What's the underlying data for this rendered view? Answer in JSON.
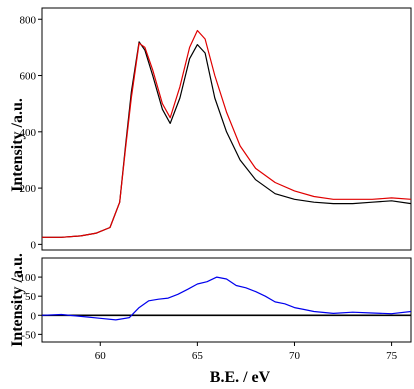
{
  "chart_data": [
    {
      "type": "line",
      "title": "",
      "xlabel": "B.E. / eV",
      "ylabel": "Intensity /a.u.",
      "xlim": [
        57,
        76
      ],
      "ylim": [
        -20,
        840
      ],
      "yticks": [
        0,
        200,
        400,
        600,
        800
      ],
      "grid": false,
      "series": [
        {
          "color": "#000000",
          "x": [
            57,
            58,
            59,
            59.8,
            60.5,
            61,
            61.3,
            61.6,
            62,
            62.3,
            62.7,
            63.2,
            63.6,
            64.1,
            64.6,
            65,
            65.4,
            65.9,
            66.5,
            67.2,
            68,
            69,
            70,
            71,
            72,
            73,
            74,
            75,
            76
          ],
          "y": [
            25,
            25,
            30,
            40,
            60,
            150,
            350,
            540,
            720,
            690,
            600,
            480,
            430,
            520,
            660,
            710,
            680,
            520,
            400,
            300,
            230,
            180,
            160,
            150,
            145,
            145,
            150,
            155,
            145
          ]
        },
        {
          "color": "#e00000",
          "x": [
            57,
            58,
            59,
            59.8,
            60.5,
            61,
            61.3,
            61.6,
            62,
            62.3,
            62.7,
            63.2,
            63.6,
            64.1,
            64.6,
            65,
            65.4,
            65.9,
            66.5,
            67.2,
            68,
            69,
            70,
            71,
            72,
            73,
            74,
            75,
            76
          ],
          "y": [
            25,
            25,
            30,
            40,
            60,
            150,
            340,
            520,
            715,
            700,
            620,
            500,
            450,
            560,
            700,
            760,
            730,
            600,
            470,
            350,
            270,
            220,
            190,
            170,
            160,
            160,
            160,
            165,
            160
          ]
        }
      ]
    },
    {
      "type": "line",
      "title": "",
      "xlabel": "B.E. / eV",
      "ylabel": "Intensity /a.u.",
      "xlim": [
        57,
        76
      ],
      "ylim": [
        -70,
        150
      ],
      "yticks": [
        -50,
        0,
        50,
        100
      ],
      "xticks": [
        60,
        65,
        70,
        75
      ],
      "grid": false,
      "reference_line_y": 0,
      "series": [
        {
          "color": "#0000ee",
          "x": [
            57,
            58,
            59,
            60,
            60.8,
            61.5,
            62,
            62.5,
            63,
            63.5,
            64,
            64.5,
            65,
            65.5,
            66,
            66.5,
            67,
            67.5,
            68,
            68.5,
            69,
            69.5,
            70,
            70.5,
            71,
            72,
            73,
            74,
            75,
            76
          ],
          "y": [
            0,
            2,
            -3,
            -8,
            -12,
            -6,
            20,
            38,
            42,
            45,
            55,
            68,
            82,
            88,
            100,
            95,
            78,
            72,
            62,
            50,
            35,
            30,
            20,
            15,
            10,
            5,
            8,
            6,
            4,
            10
          ]
        }
      ]
    }
  ]
}
